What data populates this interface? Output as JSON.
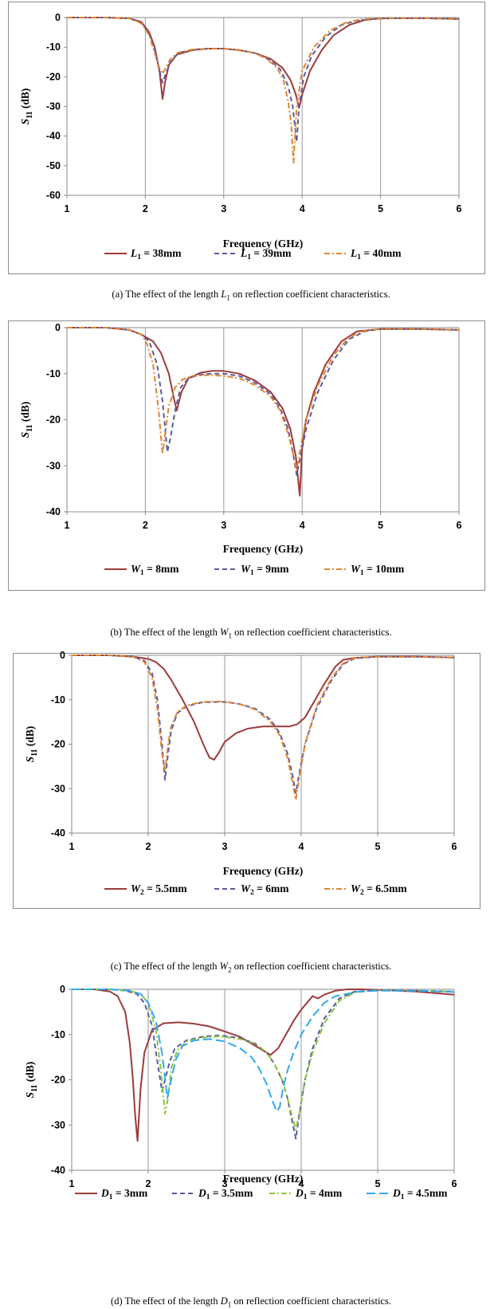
{
  "chart_data": [
    {
      "type": "line",
      "panel_id": "a",
      "param_symbol": "L",
      "param_sub": "1",
      "caption_prefix": "(a) The effect of the length ",
      "caption_suffix": " on reflection coefficient characteristics.",
      "xlabel": "Frequency (GHz)",
      "ylabel_main": "S",
      "ylabel_sub": "11",
      "ylabel_unit": " (dB)",
      "xlim": [
        1,
        6
      ],
      "ylim": [
        -60,
        0
      ],
      "xticks": [
        1,
        2,
        3,
        4,
        5,
        6
      ],
      "yticks": [
        0,
        -10,
        -20,
        -30,
        -40,
        -50,
        -60
      ],
      "series": [
        {
          "name": "38mm",
          "color": "#9b3b3b",
          "dash": "solid",
          "x": [
            1,
            1.5,
            1.8,
            1.95,
            2.05,
            2.12,
            2.18,
            2.22,
            2.25,
            2.3,
            2.4,
            2.6,
            2.8,
            3.0,
            3.2,
            3.4,
            3.6,
            3.75,
            3.85,
            3.92,
            3.96,
            4.0,
            4.1,
            4.25,
            4.4,
            4.6,
            4.8,
            5.0,
            5.5,
            6.0
          ],
          "y": [
            0,
            0,
            -0.3,
            -1.5,
            -5,
            -10,
            -18,
            -27.5,
            -22,
            -16,
            -12.5,
            -11,
            -10.5,
            -10.5,
            -11,
            -12,
            -14,
            -17,
            -21,
            -26,
            -30.5,
            -26,
            -18,
            -11,
            -6,
            -2.5,
            -0.8,
            -0.3,
            -0.2,
            -0.5
          ]
        },
        {
          "name": "39mm",
          "color": "#5a5a9e",
          "dash": "dash",
          "x": [
            1,
            1.5,
            1.8,
            1.95,
            2.05,
            2.12,
            2.18,
            2.22,
            2.26,
            2.32,
            2.42,
            2.6,
            2.8,
            3.0,
            3.2,
            3.4,
            3.6,
            3.72,
            3.82,
            3.88,
            3.93,
            3.96,
            4.02,
            4.12,
            4.3,
            4.5,
            4.7,
            5.0,
            5.5,
            6.0
          ],
          "y": [
            0,
            0,
            -0.3,
            -1.8,
            -5.5,
            -11,
            -18,
            -22,
            -19,
            -15,
            -12,
            -10.8,
            -10.5,
            -10.5,
            -11,
            -12,
            -14.5,
            -17.5,
            -23,
            -30,
            -42,
            -30,
            -20,
            -13,
            -6.5,
            -2.5,
            -1,
            -0.3,
            -0.2,
            -0.5
          ]
        },
        {
          "name": "40mm",
          "color": "#e0852f",
          "dash": "dashdot",
          "x": [
            1,
            1.5,
            1.8,
            1.95,
            2.05,
            2.12,
            2.18,
            2.22,
            2.26,
            2.32,
            2.42,
            2.6,
            2.8,
            3.0,
            3.2,
            3.4,
            3.55,
            3.68,
            3.76,
            3.82,
            3.86,
            3.89,
            3.93,
            4.0,
            4.15,
            4.35,
            4.55,
            4.75,
            5.0,
            5.5,
            6.0
          ],
          "y": [
            0,
            0,
            -0.3,
            -2,
            -6,
            -12,
            -17,
            -19,
            -17,
            -14,
            -11.8,
            -10.8,
            -10.5,
            -10.5,
            -11,
            -12,
            -14,
            -17,
            -21,
            -28,
            -36,
            -49,
            -30,
            -18,
            -10,
            -4.5,
            -1.8,
            -0.6,
            -0.3,
            -0.2,
            -0.5
          ]
        }
      ]
    },
    {
      "type": "line",
      "panel_id": "b",
      "param_symbol": "W",
      "param_sub": "1",
      "caption_prefix": "(b) The effect of the length ",
      "caption_suffix": " on reflection coefficient characteristics.",
      "xlabel": "Frequency (GHz)",
      "ylabel_main": "S",
      "ylabel_sub": "11",
      "ylabel_unit": " (dB)",
      "xlim": [
        1,
        6
      ],
      "ylim": [
        -40,
        0
      ],
      "xticks": [
        1,
        2,
        3,
        4,
        5,
        6
      ],
      "yticks": [
        0,
        -10,
        -20,
        -30,
        -40
      ],
      "series": [
        {
          "name": "8mm",
          "color": "#9b3b3b",
          "dash": "solid",
          "x": [
            1,
            1.5,
            1.8,
            1.95,
            2.1,
            2.2,
            2.3,
            2.36,
            2.4,
            2.46,
            2.55,
            2.7,
            2.85,
            3.0,
            3.2,
            3.4,
            3.6,
            3.75,
            3.85,
            3.92,
            3.97,
            4.0,
            4.05,
            4.15,
            4.3,
            4.5,
            4.7,
            5.0,
            5.5,
            6.0
          ],
          "y": [
            0,
            0,
            -0.5,
            -1.5,
            -3,
            -5.5,
            -10,
            -15,
            -18,
            -14,
            -11,
            -9.8,
            -9.4,
            -9.4,
            -10,
            -11.5,
            -14,
            -17.5,
            -22,
            -28,
            -36.5,
            -26,
            -20,
            -14,
            -8,
            -3,
            -0.8,
            -0.3,
            -0.3,
            -0.5
          ]
        },
        {
          "name": "9mm",
          "color": "#5a5a9e",
          "dash": "dash",
          "x": [
            1,
            1.5,
            1.8,
            1.95,
            2.05,
            2.15,
            2.22,
            2.28,
            2.32,
            2.38,
            2.45,
            2.55,
            2.7,
            2.85,
            3.0,
            3.2,
            3.4,
            3.6,
            3.72,
            3.82,
            3.88,
            3.93,
            3.98,
            4.05,
            4.2,
            4.4,
            4.6,
            4.8,
            5.0,
            5.5,
            6.0
          ],
          "y": [
            0,
            0,
            -0.5,
            -1.5,
            -3,
            -8,
            -16,
            -27,
            -24,
            -18,
            -13,
            -11,
            -10.2,
            -10,
            -10,
            -10.5,
            -12,
            -14.5,
            -17.5,
            -22,
            -27,
            -32,
            -28,
            -22,
            -14,
            -7,
            -2.5,
            -0.8,
            -0.3,
            -0.3,
            -0.5
          ]
        },
        {
          "name": "10mm",
          "color": "#e0852f",
          "dash": "dashdot",
          "x": [
            1,
            1.5,
            1.8,
            1.95,
            2.02,
            2.1,
            2.17,
            2.22,
            2.26,
            2.3,
            2.38,
            2.48,
            2.6,
            2.8,
            3.0,
            3.2,
            3.4,
            3.6,
            3.72,
            3.82,
            3.88,
            3.93,
            3.98,
            4.05,
            4.2,
            4.4,
            4.6,
            4.8,
            5.0,
            5.5,
            6.0
          ],
          "y": [
            0,
            0,
            -0.5,
            -1.5,
            -3.5,
            -8,
            -18,
            -27.5,
            -22,
            -17,
            -13,
            -11.2,
            -10.5,
            -10.3,
            -10.5,
            -11,
            -12.5,
            -15,
            -18,
            -23,
            -27,
            -31,
            -26,
            -20,
            -12.5,
            -6,
            -2,
            -0.7,
            -0.3,
            -0.3,
            -0.5
          ]
        }
      ]
    },
    {
      "type": "line",
      "panel_id": "c",
      "param_symbol": "W",
      "param_sub": "2",
      "caption_prefix": "(c) The effect of the length ",
      "caption_suffix": " on reflection coefficient characteristics.",
      "xlabel": "Frequency (GHz)",
      "ylabel_main": "S",
      "ylabel_sub": "11",
      "ylabel_unit": " (dB)",
      "xlim": [
        1,
        6
      ],
      "ylim": [
        -40,
        0
      ],
      "xticks": [
        1,
        2,
        3,
        4,
        5,
        6
      ],
      "yticks": [
        0,
        -10,
        -20,
        -30,
        -40
      ],
      "series": [
        {
          "name": "5.5mm",
          "color": "#9b3b3b",
          "dash": "solid",
          "x": [
            1,
            1.5,
            1.8,
            2.0,
            2.1,
            2.2,
            2.3,
            2.45,
            2.6,
            2.72,
            2.8,
            2.86,
            2.92,
            3.0,
            3.15,
            3.3,
            3.5,
            3.7,
            3.85,
            3.95,
            4.05,
            4.15,
            4.3,
            4.45,
            4.55,
            4.62,
            4.7,
            5.0,
            5.5,
            6.0
          ],
          "y": [
            0,
            0,
            -0.3,
            -0.8,
            -1.5,
            -3,
            -5.5,
            -10,
            -15,
            -20,
            -23,
            -23.5,
            -22,
            -19.5,
            -17.5,
            -16.5,
            -16,
            -16,
            -16,
            -15.5,
            -14,
            -11,
            -6.5,
            -2.5,
            -1,
            -0.8,
            -0.6,
            -0.3,
            -0.3,
            -0.5
          ]
        },
        {
          "name": "6mm",
          "color": "#5a5a9e",
          "dash": "dash",
          "x": [
            1,
            1.5,
            1.8,
            1.95,
            2.05,
            2.12,
            2.18,
            2.22,
            2.26,
            2.3,
            2.38,
            2.5,
            2.7,
            2.9,
            3.0,
            3.2,
            3.4,
            3.6,
            3.72,
            3.82,
            3.88,
            3.93,
            3.98,
            4.05,
            4.2,
            4.4,
            4.55,
            4.7,
            5.0,
            5.5,
            6.0
          ],
          "y": [
            0,
            0,
            -0.3,
            -1.2,
            -4,
            -10,
            -20,
            -28,
            -22,
            -17,
            -13,
            -11.5,
            -10.6,
            -10.5,
            -10.5,
            -11,
            -12,
            -14.5,
            -17.5,
            -22,
            -26.5,
            -31,
            -26,
            -20,
            -12,
            -5.5,
            -2,
            -0.7,
            -0.3,
            -0.3,
            -0.5
          ]
        },
        {
          "name": "6.5mm",
          "color": "#e0852f",
          "dash": "dashdot",
          "x": [
            1,
            1.5,
            1.8,
            1.95,
            2.05,
            2.12,
            2.18,
            2.22,
            2.26,
            2.3,
            2.38,
            2.5,
            2.7,
            2.9,
            3.0,
            3.2,
            3.4,
            3.6,
            3.72,
            3.82,
            3.88,
            3.93,
            3.98,
            4.05,
            4.2,
            4.4,
            4.55,
            4.7,
            5.0,
            5.5,
            6.0
          ],
          "y": [
            0,
            0,
            -0.3,
            -1.5,
            -5,
            -12,
            -22,
            -26,
            -20,
            -16,
            -12.8,
            -11.3,
            -10.5,
            -10.4,
            -10.4,
            -11,
            -12.2,
            -15,
            -18,
            -23,
            -28,
            -32.5,
            -27,
            -20,
            -11.5,
            -5,
            -1.8,
            -0.6,
            -0.3,
            -0.3,
            -0.5
          ]
        }
      ]
    },
    {
      "type": "line",
      "panel_id": "d",
      "param_symbol": "D",
      "param_sub": "1",
      "caption_prefix": "(d) The effect of the length ",
      "caption_suffix": " on reflection coefficient characteristics.",
      "xlabel": "Frequency (GHz)",
      "ylabel_main": "S",
      "ylabel_sub": "11",
      "ylabel_unit": " (dB)",
      "xlim": [
        1,
        6
      ],
      "ylim": [
        -40,
        0
      ],
      "xticks": [
        1,
        2,
        3,
        4,
        5,
        6
      ],
      "yticks": [
        0,
        -10,
        -20,
        -30,
        -40
      ],
      "series": [
        {
          "name": "3mm",
          "color": "#9b3b3b",
          "dash": "solid",
          "x": [
            1,
            1.3,
            1.5,
            1.6,
            1.7,
            1.76,
            1.8,
            1.83,
            1.86,
            1.9,
            1.95,
            2.05,
            2.2,
            2.4,
            2.6,
            2.8,
            3.0,
            3.2,
            3.4,
            3.5,
            3.6,
            3.7,
            3.8,
            3.9,
            4.0,
            4.1,
            4.15,
            4.22,
            4.3,
            4.45,
            4.6,
            4.8,
            5.0,
            5.5,
            6.0
          ],
          "y": [
            0,
            0,
            -0.5,
            -1.5,
            -5,
            -12,
            -20,
            -28,
            -33.5,
            -22,
            -14,
            -9,
            -7.5,
            -7.3,
            -7.6,
            -8.2,
            -9.3,
            -10.5,
            -12.5,
            -13.5,
            -14.5,
            -13,
            -10,
            -7,
            -4.5,
            -2.5,
            -1.5,
            -2,
            -1.2,
            -0.3,
            0,
            0,
            -0.1,
            -0.5,
            -1.2
          ]
        },
        {
          "name": "3.5mm",
          "color": "#5a5a9e",
          "dash": "dash",
          "x": [
            1,
            1.5,
            1.7,
            1.85,
            1.95,
            2.05,
            2.12,
            2.18,
            2.22,
            2.28,
            2.35,
            2.5,
            2.7,
            2.9,
            3.0,
            3.2,
            3.4,
            3.55,
            3.65,
            3.75,
            3.82,
            3.88,
            3.93,
            3.98,
            4.05,
            4.15,
            4.3,
            4.5,
            4.7,
            5.0,
            5.5,
            6.0
          ],
          "y": [
            0,
            0,
            -0.3,
            -1,
            -3,
            -8,
            -16,
            -22.5,
            -20,
            -16,
            -13,
            -11.3,
            -10.5,
            -10.2,
            -10.3,
            -10.8,
            -12,
            -14,
            -16.5,
            -20,
            -24,
            -29,
            -33,
            -27,
            -20,
            -13,
            -6.5,
            -2,
            -0.5,
            -0.2,
            -0.3,
            -0.5
          ]
        },
        {
          "name": "4mm",
          "color": "#8cc63f",
          "dash": "dashdot",
          "x": [
            1,
            1.5,
            1.75,
            1.9,
            2.0,
            2.1,
            2.16,
            2.22,
            2.26,
            2.3,
            2.38,
            2.5,
            2.7,
            2.9,
            3.0,
            3.2,
            3.4,
            3.55,
            3.65,
            3.75,
            3.82,
            3.88,
            3.93,
            3.98,
            4.05,
            4.15,
            4.3,
            4.5,
            4.7,
            5.0,
            5.5,
            6.0
          ],
          "y": [
            0,
            0,
            -0.3,
            -1,
            -3,
            -9,
            -17,
            -27.5,
            -24,
            -17.5,
            -13.5,
            -11.5,
            -10.7,
            -10.4,
            -10.5,
            -11,
            -12,
            -14,
            -16.5,
            -20,
            -24,
            -28,
            -31,
            -27,
            -20,
            -14,
            -7.5,
            -2.5,
            -0.7,
            -0.2,
            -0.3,
            -0.5
          ]
        },
        {
          "name": "4.5mm",
          "color": "#2eaaf0",
          "dash": "longdash",
          "x": [
            1,
            1.5,
            1.75,
            1.9,
            2.0,
            2.1,
            2.18,
            2.25,
            2.3,
            2.36,
            2.45,
            2.6,
            2.8,
            3.0,
            3.2,
            3.35,
            3.45,
            3.55,
            3.62,
            3.68,
            3.72,
            3.76,
            3.82,
            3.9,
            4.0,
            4.15,
            4.3,
            4.45,
            4.6,
            4.75,
            5.0,
            5.5,
            6.0
          ],
          "y": [
            0,
            0,
            -0.3,
            -1,
            -3,
            -7,
            -14,
            -24,
            -20,
            -15.5,
            -12.5,
            -11.3,
            -11,
            -11.5,
            -13,
            -15,
            -17.5,
            -21,
            -24.5,
            -27,
            -26,
            -22,
            -18,
            -14,
            -10,
            -6,
            -3,
            -1.5,
            -1,
            -0.5,
            -0.3,
            -0.3,
            -0.6
          ]
        }
      ]
    }
  ]
}
